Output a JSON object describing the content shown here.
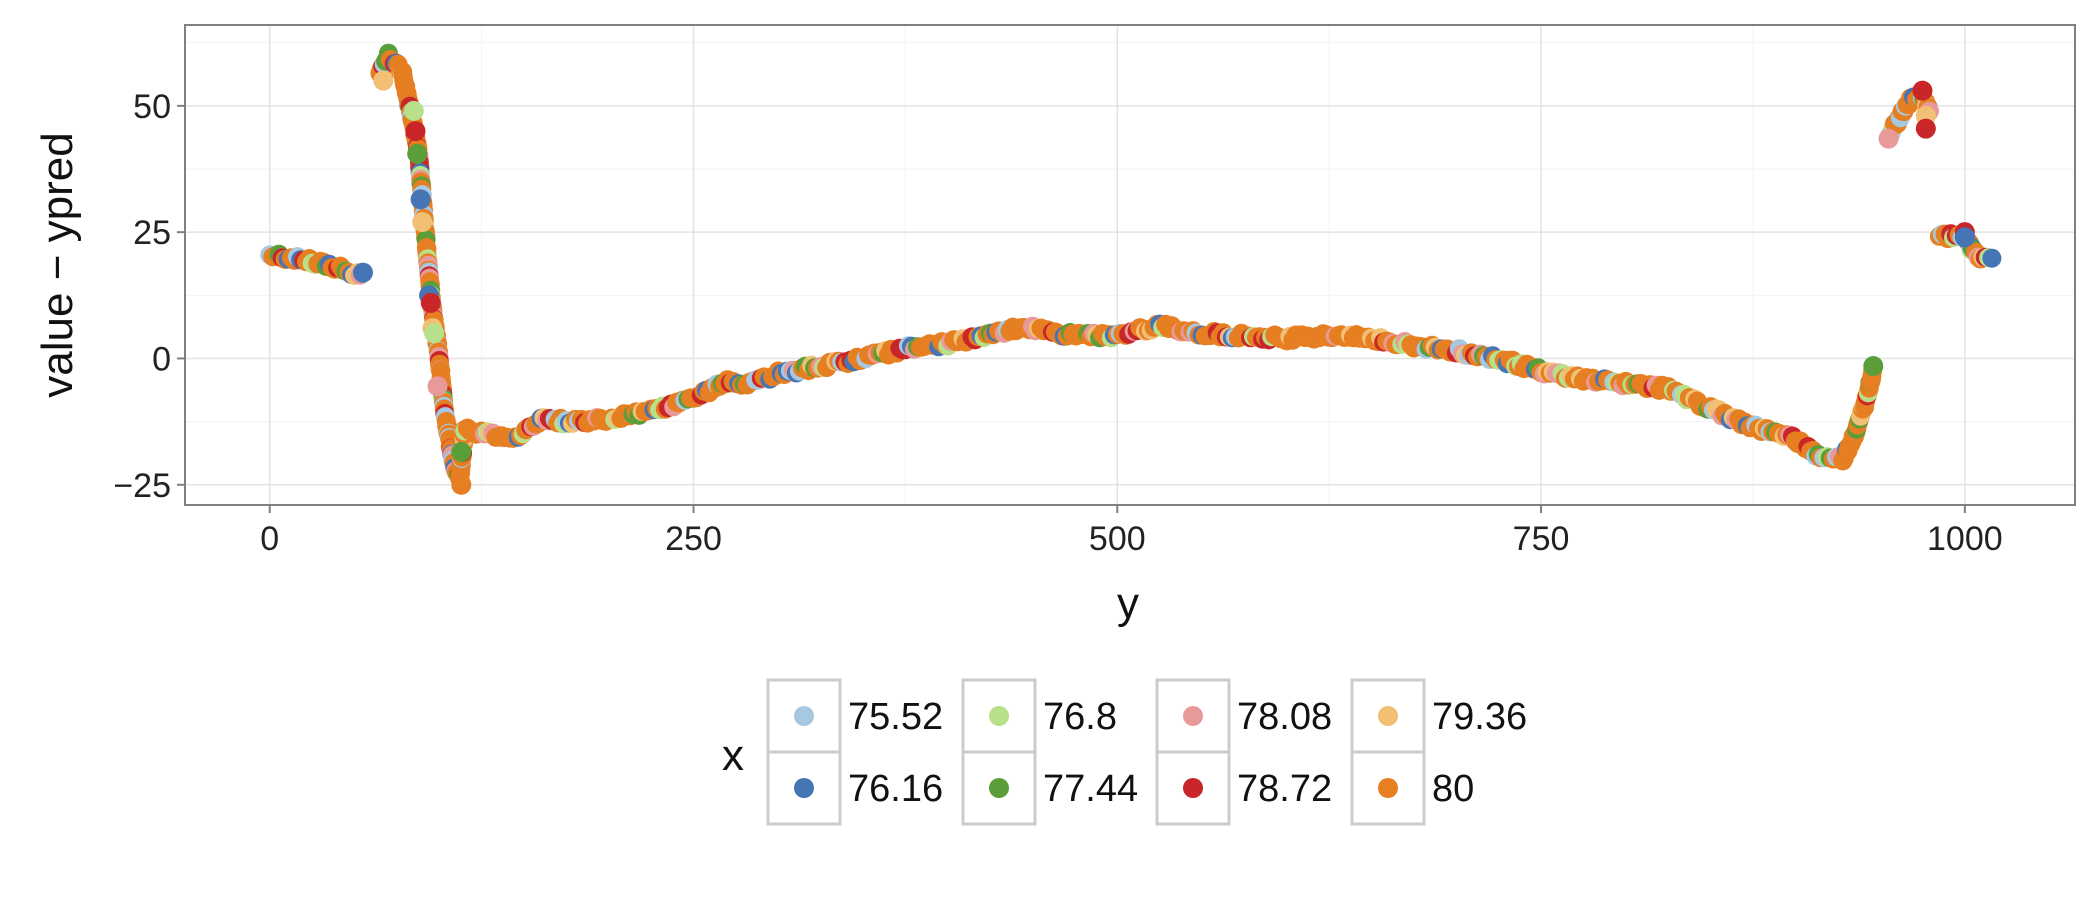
{
  "chart_data": {
    "type": "scatter",
    "title": "",
    "xlabel": "y",
    "ylabel": "value − ypred",
    "xlim": [
      -50,
      1065
    ],
    "ylim": [
      -29,
      66
    ],
    "xticks": [
      0,
      250,
      500,
      750,
      1000
    ],
    "xtick_labels": [
      "0",
      "250",
      "500",
      "750",
      "1000"
    ],
    "yticks": [
      -25,
      0,
      25,
      50
    ],
    "ytick_labels": [
      "−25",
      "0",
      "25",
      "50"
    ],
    "grid": true,
    "legend": {
      "title": "x",
      "position": "bottom",
      "entries": [
        {
          "label": "75.52",
          "color": "#a6c8e0"
        },
        {
          "label": "76.16",
          "color": "#4575b4"
        },
        {
          "label": "76.8",
          "color": "#b8df8a"
        },
        {
          "label": "77.44",
          "color": "#5a9e3a"
        },
        {
          "label": "78.08",
          "color": "#e8999a"
        },
        {
          "label": "78.72",
          "color": "#c9262a"
        },
        {
          "label": "79.36",
          "color": "#f1c074"
        },
        {
          "label": "80",
          "color": "#e67e22"
        }
      ]
    },
    "trend": [
      [
        0,
        20.5
      ],
      [
        20,
        19.5
      ],
      [
        40,
        18
      ],
      [
        55,
        16
      ],
      [
        65,
        57
      ],
      [
        70,
        60
      ],
      [
        78,
        57
      ],
      [
        85,
        46
      ],
      [
        88,
        40
      ],
      [
        90,
        32
      ],
      [
        93,
        20
      ],
      [
        96,
        10
      ],
      [
        100,
        0
      ],
      [
        103,
        -10
      ],
      [
        108,
        -20
      ],
      [
        112,
        -24
      ],
      [
        115,
        -14
      ],
      [
        130,
        -15
      ],
      [
        145,
        -15.5
      ],
      [
        160,
        -12
      ],
      [
        175,
        -12.5
      ],
      [
        200,
        -12
      ],
      [
        225,
        -10.5
      ],
      [
        250,
        -8
      ],
      [
        270,
        -4.5
      ],
      [
        285,
        -5
      ],
      [
        300,
        -3
      ],
      [
        325,
        -1.5
      ],
      [
        350,
        0
      ],
      [
        375,
        2
      ],
      [
        400,
        3
      ],
      [
        425,
        4.5
      ],
      [
        445,
        6.5
      ],
      [
        460,
        5
      ],
      [
        500,
        4.5
      ],
      [
        525,
        6.5
      ],
      [
        550,
        5
      ],
      [
        575,
        4.5
      ],
      [
        600,
        4
      ],
      [
        625,
        4.5
      ],
      [
        650,
        4
      ],
      [
        675,
        2.5
      ],
      [
        700,
        1.5
      ],
      [
        725,
        0
      ],
      [
        750,
        -2.5
      ],
      [
        775,
        -4
      ],
      [
        800,
        -5
      ],
      [
        825,
        -6
      ],
      [
        850,
        -10
      ],
      [
        875,
        -13.5
      ],
      [
        900,
        -16
      ],
      [
        915,
        -19.5
      ],
      [
        928,
        -20
      ],
      [
        935,
        -15
      ],
      [
        942,
        -8
      ],
      [
        946,
        -2
      ],
      [
        955,
        44
      ],
      [
        962,
        48
      ],
      [
        968,
        51
      ],
      [
        975,
        52
      ],
      [
        980,
        49
      ],
      [
        985,
        24.5
      ],
      [
        995,
        24
      ],
      [
        1000,
        24.5
      ],
      [
        1005,
        21
      ],
      [
        1012,
        19.5
      ],
      [
        1018,
        20
      ]
    ],
    "highlights": [
      {
        "x": 55,
        "y": 17,
        "series": "76.16"
      },
      {
        "x": 67,
        "y": 55,
        "series": "79.36"
      },
      {
        "x": 85,
        "y": 49,
        "series": "76.8"
      },
      {
        "x": 86,
        "y": 45,
        "series": "78.72"
      },
      {
        "x": 87,
        "y": 40.5,
        "series": "77.44"
      },
      {
        "x": 89,
        "y": 31.5,
        "series": "76.16"
      },
      {
        "x": 90,
        "y": 27,
        "series": "79.36"
      },
      {
        "x": 94,
        "y": 12.5,
        "series": "76.16"
      },
      {
        "x": 95,
        "y": 11,
        "series": "78.72"
      },
      {
        "x": 96,
        "y": 6,
        "series": "79.36"
      },
      {
        "x": 97,
        "y": 5,
        "series": "76.8"
      },
      {
        "x": 99,
        "y": -5.5,
        "series": "78.08"
      },
      {
        "x": 113,
        "y": -18.5,
        "series": "77.44"
      },
      {
        "x": 113,
        "y": -25,
        "series": "80"
      },
      {
        "x": 946,
        "y": -1.5,
        "series": "77.44"
      },
      {
        "x": 955,
        "y": 43.5,
        "series": "78.08"
      },
      {
        "x": 975,
        "y": 53,
        "series": "78.72"
      },
      {
        "x": 977,
        "y": 48,
        "series": "79.36"
      },
      {
        "x": 977,
        "y": 45.5,
        "series": "78.72"
      },
      {
        "x": 1000,
        "y": 25,
        "series": "78.72"
      },
      {
        "x": 1000,
        "y": 24,
        "series": "76.16"
      }
    ]
  }
}
